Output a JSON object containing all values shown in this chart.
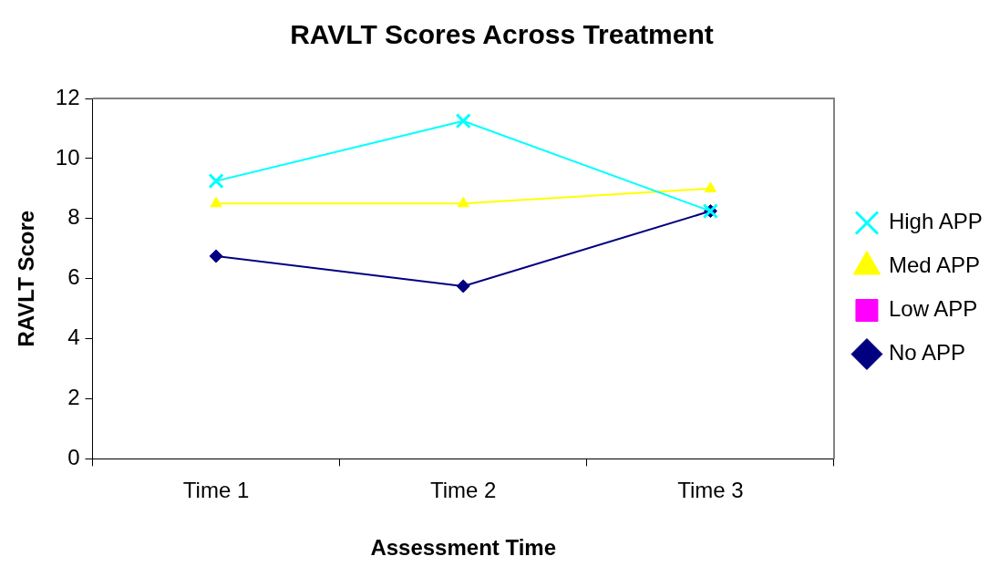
{
  "chart_data": {
    "type": "line",
    "title": "RAVLT Scores Across Treatment",
    "xlabel": "Assessment Time",
    "ylabel": "RAVLT Score",
    "categories": [
      "Time 1",
      "Time 2",
      "Time 3"
    ],
    "series": [
      {
        "name": "No APP",
        "color": "#000080",
        "marker": "diamond",
        "values": [
          6.75,
          5.75,
          8.25
        ]
      },
      {
        "name": "Low APP",
        "color": "#ff00ff",
        "marker": "square",
        "values": [
          null,
          null,
          null
        ]
      },
      {
        "name": "Med APP",
        "color": "#ffff00",
        "marker": "triangle",
        "values": [
          8.5,
          8.5,
          9.0
        ]
      },
      {
        "name": "High APP",
        "color": "#00ffff",
        "marker": "cross",
        "values": [
          9.25,
          11.25,
          8.25
        ]
      }
    ],
    "ylim": [
      0,
      12
    ],
    "yticks": [
      0,
      2,
      4,
      6,
      8,
      10,
      12
    ],
    "grid": false,
    "legend": "right",
    "line_style": "solid"
  }
}
